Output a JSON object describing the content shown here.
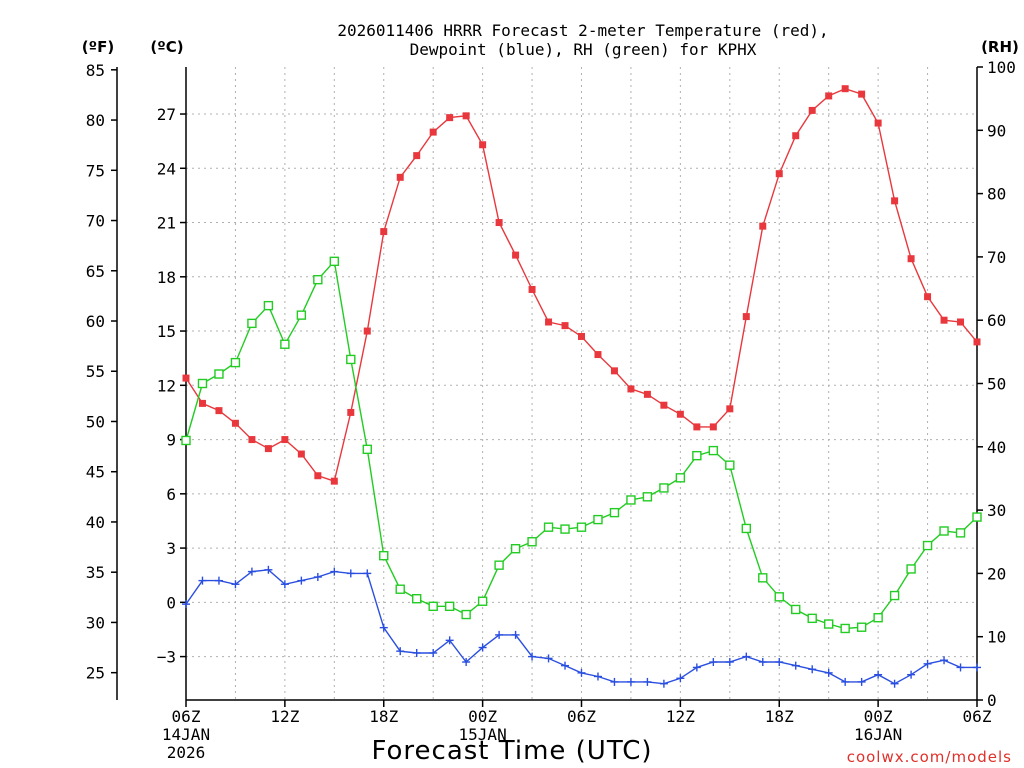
{
  "chart_data": {
    "type": "line",
    "title_line1": "2026011406 HRRR Forecast 2-meter Temperature (red),",
    "title_line2": "Dewpoint (blue), RH (green) for KPHX",
    "xlabel": "Forecast Time (UTC)",
    "credit": "coolwx.com/models",
    "unit_labels": {
      "fahrenheit": "(ºF)",
      "celsius": "(ºC)",
      "rh": "(RH)"
    },
    "x_range_hours": [
      0,
      48
    ],
    "celsius_range": [
      -5.4,
      29.6
    ],
    "rh_range": [
      0,
      100
    ],
    "fahrenheit_ticks": [
      "85",
      "80",
      "75",
      "70",
      "65",
      "60",
      "55",
      "50",
      "45",
      "40",
      "35",
      "30",
      "25"
    ],
    "fahrenheit_tick_values": [
      85,
      80,
      75,
      70,
      65,
      60,
      55,
      50,
      45,
      40,
      35,
      30,
      25
    ],
    "celsius_ticks": [
      "27",
      "24",
      "21",
      "18",
      "15",
      "12",
      "9",
      "6",
      "3",
      "0",
      "−3"
    ],
    "celsius_tick_values": [
      27,
      24,
      21,
      18,
      15,
      12,
      9,
      6,
      3,
      0,
      -3
    ],
    "rh_ticks": [
      "100",
      "90",
      "80",
      "70",
      "60",
      "50",
      "40",
      "30",
      "20",
      "10",
      "0"
    ],
    "rh_tick_values": [
      100,
      90,
      80,
      70,
      60,
      50,
      40,
      30,
      20,
      10,
      0
    ],
    "x_ticks": [
      {
        "hour": 0,
        "label": "06Z",
        "date": "14JAN",
        "year": "2026"
      },
      {
        "hour": 6,
        "label": "12Z",
        "date": "",
        "year": ""
      },
      {
        "hour": 12,
        "label": "18Z",
        "date": "",
        "year": ""
      },
      {
        "hour": 18,
        "label": "00Z",
        "date": "15JAN",
        "year": ""
      },
      {
        "hour": 24,
        "label": "06Z",
        "date": "",
        "year": ""
      },
      {
        "hour": 30,
        "label": "12Z",
        "date": "",
        "year": ""
      },
      {
        "hour": 36,
        "label": "18Z",
        "date": "",
        "year": ""
      },
      {
        "hour": 42,
        "label": "00Z",
        "date": "16JAN",
        "year": ""
      },
      {
        "hour": 48,
        "label": "06Z",
        "date": "",
        "year": ""
      }
    ],
    "series": [
      {
        "name": "2-meter Temperature",
        "axis": "celsius",
        "color": "#e8383d",
        "marker": "filled-square",
        "values": [
          12.4,
          11.0,
          10.6,
          9.9,
          9.0,
          8.5,
          9.0,
          8.2,
          7.0,
          6.7,
          10.5,
          15.0,
          20.5,
          23.5,
          24.7,
          26.0,
          26.8,
          26.9,
          25.3,
          21.0,
          19.2,
          17.3,
          15.5,
          15.3,
          14.7,
          13.7,
          12.8,
          11.8,
          11.5,
          10.9,
          10.4,
          9.7,
          9.7,
          10.7,
          15.8,
          20.8,
          23.7,
          25.8,
          27.2,
          28.0,
          28.4,
          28.1,
          26.5,
          22.2,
          19.0,
          16.9,
          15.6,
          15.5,
          14.4
        ]
      },
      {
        "name": "Dewpoint",
        "axis": "celsius",
        "color": "#2a4fe0",
        "marker": "plus",
        "values": [
          -0.1,
          1.2,
          1.2,
          1.0,
          1.7,
          1.8,
          1.0,
          1.2,
          1.4,
          1.7,
          1.6,
          1.6,
          -1.4,
          -2.7,
          -2.8,
          -2.8,
          -2.1,
          -3.3,
          -2.5,
          -1.8,
          -1.8,
          -3.0,
          -3.1,
          -3.5,
          -3.9,
          -4.1,
          -4.4,
          -4.4,
          -4.4,
          -4.5,
          -4.2,
          -3.6,
          -3.3,
          -3.3,
          -3.0,
          -3.3,
          -3.3,
          -3.5,
          -3.7,
          -3.9,
          -4.4,
          -4.4,
          -4.0,
          -4.5,
          -4.0,
          -3.4,
          -3.2,
          -3.6,
          -3.6
        ]
      },
      {
        "name": "RH",
        "axis": "rh",
        "color": "#22cc22",
        "marker": "open-square",
        "values": [
          41,
          50,
          51.5,
          53.3,
          59.5,
          62.3,
          56.2,
          60.8,
          66.4,
          69.3,
          53.8,
          39.6,
          22.8,
          17.5,
          16.0,
          14.8,
          14.8,
          13.5,
          15.6,
          21.3,
          23.9,
          25.0,
          27.3,
          27.0,
          27.3,
          28.5,
          29.6,
          31.6,
          32.1,
          33.5,
          35.1,
          38.6,
          39.4,
          37.1,
          27.1,
          19.3,
          16.3,
          14.3,
          12.9,
          12.0,
          11.3,
          11.5,
          13.0,
          16.5,
          20.7,
          24.4,
          26.7,
          26.4,
          28.9
        ]
      }
    ]
  }
}
